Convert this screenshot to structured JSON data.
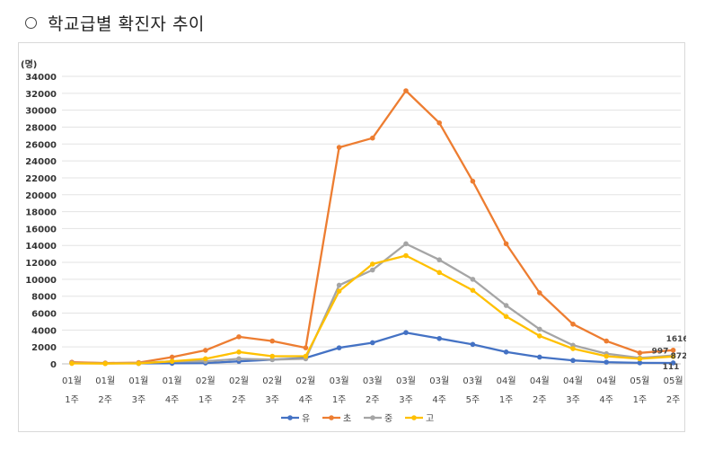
{
  "heading": {
    "icon": "circle-icon",
    "text": "학교급별 확진자 추이"
  },
  "chart_data": {
    "type": "line",
    "title": "",
    "xlabel": "",
    "ylabel": "(명)",
    "ylim": [
      0,
      34000
    ],
    "ytick_step": 2000,
    "grid": true,
    "legend_position": "bottom",
    "categories": [
      [
        "01월",
        "1주"
      ],
      [
        "01월",
        "2주"
      ],
      [
        "01월",
        "3주"
      ],
      [
        "01월",
        "4주"
      ],
      [
        "02월",
        "1주"
      ],
      [
        "02월",
        "2주"
      ],
      [
        "02월",
        "3주"
      ],
      [
        "02월",
        "4주"
      ],
      [
        "03월",
        "1주"
      ],
      [
        "03월",
        "2주"
      ],
      [
        "03월",
        "3주"
      ],
      [
        "03월",
        "4주"
      ],
      [
        "03월",
        "5주"
      ],
      [
        "04월",
        "1주"
      ],
      [
        "04월",
        "2주"
      ],
      [
        "04월",
        "3주"
      ],
      [
        "04월",
        "4주"
      ],
      [
        "05월",
        "1주"
      ],
      [
        "05월",
        "2주"
      ]
    ],
    "series": [
      {
        "name": "유",
        "color": "#4472c4",
        "values": [
          150,
          80,
          50,
          60,
          100,
          300,
          500,
          700,
          1900,
          2500,
          3700,
          3000,
          2300,
          1400,
          800,
          400,
          200,
          120,
          111
        ]
      },
      {
        "name": "초",
        "color": "#ed7d31",
        "values": [
          200,
          100,
          150,
          800,
          1600,
          3200,
          2700,
          1900,
          25600,
          26700,
          32300,
          28500,
          21600,
          14200,
          8400,
          4700,
          2700,
          1300,
          1616
        ]
      },
      {
        "name": "중",
        "color": "#a5a5a5",
        "values": [
          100,
          50,
          80,
          300,
          300,
          600,
          500,
          600,
          9300,
          11100,
          14200,
          12300,
          10000,
          6900,
          4100,
          2200,
          1200,
          700,
          997
        ]
      },
      {
        "name": "고",
        "color": "#ffc000",
        "values": [
          50,
          30,
          50,
          300,
          600,
          1400,
          900,
          900,
          8600,
          11800,
          12800,
          10800,
          8700,
          5600,
          3300,
          1800,
          900,
          600,
          872
        ]
      }
    ],
    "end_labels": [
      {
        "series": "초",
        "text": "1616"
      },
      {
        "series": "중",
        "text": "997"
      },
      {
        "series": "고",
        "text": "872"
      },
      {
        "series": "유",
        "text": "111"
      }
    ]
  }
}
